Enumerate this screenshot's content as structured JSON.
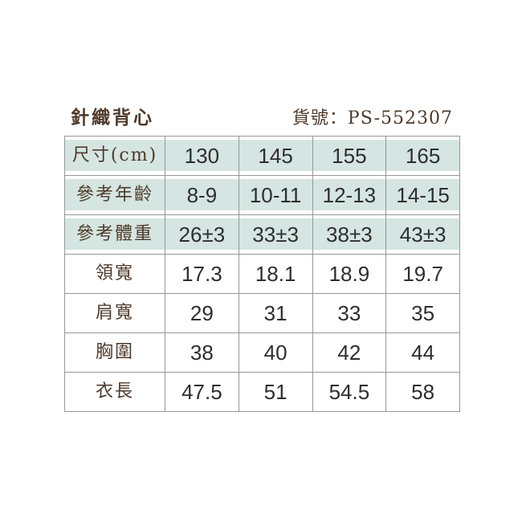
{
  "header": {
    "title": "針織背心",
    "product_code": "貨號：PS-552307"
  },
  "table": {
    "rows": [
      {
        "label": "尺寸(cm)",
        "values": [
          "130",
          "145",
          "155",
          "165"
        ]
      },
      {
        "label": "參考年齡",
        "values": [
          "8-9",
          "10-11",
          "12-13",
          "14-15"
        ]
      },
      {
        "label": "參考體重",
        "values": [
          "26±3",
          "33±3",
          "38±3",
          "43±3"
        ]
      },
      {
        "label": "領寬",
        "values": [
          "17.3",
          "18.1",
          "18.9",
          "19.7"
        ]
      },
      {
        "label": "肩寬",
        "values": [
          "29",
          "31",
          "33",
          "35"
        ]
      },
      {
        "label": "胸圍",
        "values": [
          "38",
          "40",
          "42",
          "44"
        ]
      },
      {
        "label": "衣長",
        "values": [
          "47.5",
          "51",
          "54.5",
          "58"
        ]
      }
    ]
  },
  "colors": {
    "highlight-bg": "#d5e5e1",
    "border": "#979797",
    "label-text": "#4e3a2b",
    "value-text": "#2e2e2e"
  }
}
